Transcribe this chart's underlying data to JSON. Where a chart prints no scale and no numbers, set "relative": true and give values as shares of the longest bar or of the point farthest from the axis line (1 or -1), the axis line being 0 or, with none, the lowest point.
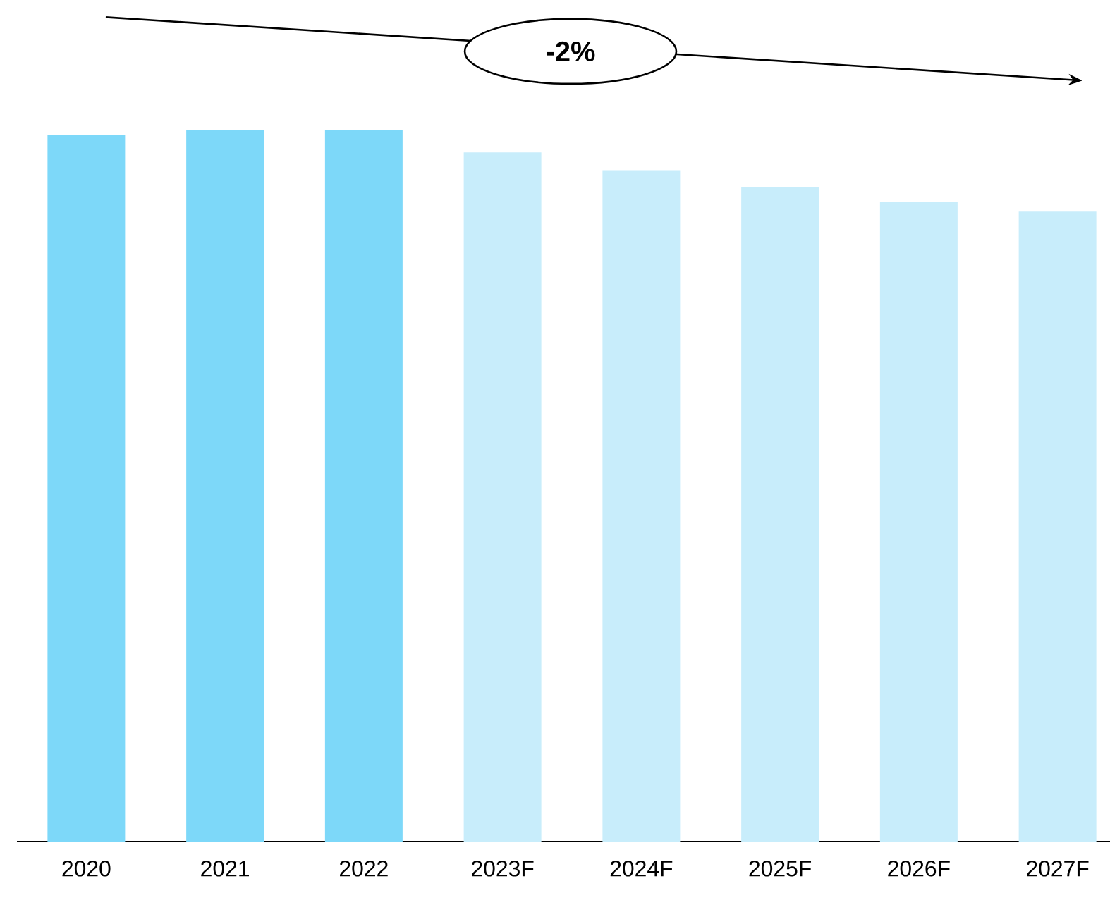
{
  "chart_data": {
    "type": "bar",
    "relative": true,
    "categories": [
      "2020",
      "2021",
      "2022",
      "2023F",
      "2024F",
      "2025F",
      "2026F",
      "2027F"
    ],
    "values": [
      0.992,
      1,
      1,
      0.968,
      0.943,
      0.919,
      0.899,
      0.885
    ],
    "colors": [
      "#7dd8f9",
      "#7dd8f9",
      "#7dd8f9",
      "#c8edfb",
      "#c8edfb",
      "#c8edfb",
      "#c8edfb",
      "#c8edfb"
    ],
    "annotations": [
      "-2%"
    ]
  }
}
